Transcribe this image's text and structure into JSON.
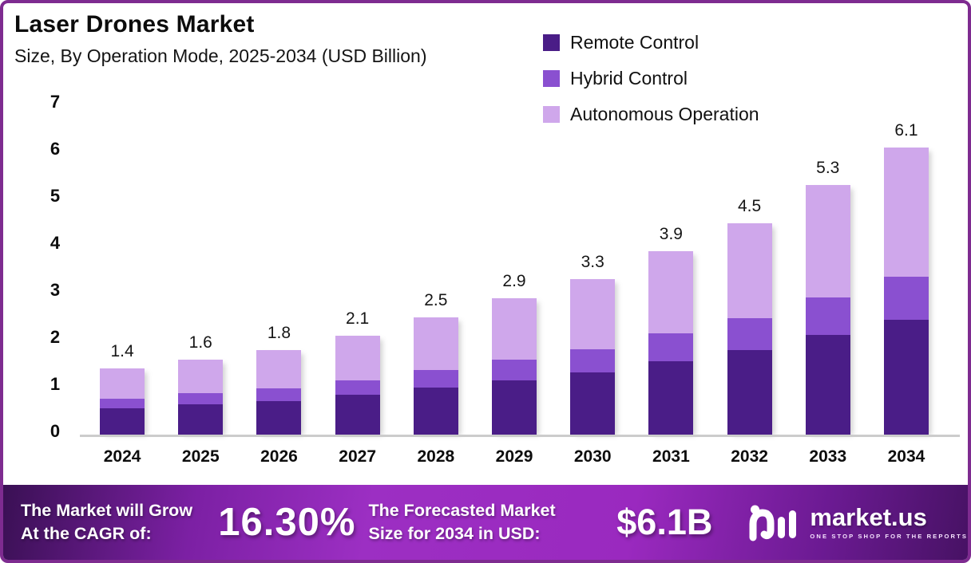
{
  "title": "Laser Drones Market",
  "subtitle": "Size, By Operation Mode, 2025-2034 (USD Billion)",
  "legend": [
    {
      "label": "Remote Control"
    },
    {
      "label": "Hybrid Control"
    },
    {
      "label": "Autonomous Operation"
    }
  ],
  "chart_data": {
    "type": "bar",
    "stacked": true,
    "title": "Laser Drones Market Size, By Operation Mode, 2025-2034 (USD Billion)",
    "categories": [
      "2024",
      "2025",
      "2026",
      "2027",
      "2028",
      "2029",
      "2030",
      "2031",
      "2032",
      "2033",
      "2034"
    ],
    "series": [
      {
        "name": "Remote Control",
        "color": "#4a1d87",
        "values": [
          0.56,
          0.64,
          0.72,
          0.84,
          1.0,
          1.16,
          1.32,
          1.56,
          1.8,
          2.12,
          2.44
        ]
      },
      {
        "name": "Hybrid Control",
        "color": "#8a50d0",
        "values": [
          0.21,
          0.24,
          0.27,
          0.32,
          0.38,
          0.44,
          0.5,
          0.59,
          0.68,
          0.8,
          0.92
        ]
      },
      {
        "name": "Autonomous Operation",
        "color": "#cfa7eb",
        "values": [
          0.63,
          0.72,
          0.81,
          0.94,
          1.12,
          1.3,
          1.48,
          1.75,
          2.02,
          2.38,
          2.74
        ]
      }
    ],
    "totals": [
      1.4,
      1.6,
      1.8,
      2.1,
      2.5,
      2.9,
      3.3,
      3.9,
      4.5,
      5.3,
      6.1
    ],
    "total_labels": [
      "1.4",
      "1.6",
      "1.8",
      "2.1",
      "2.5",
      "2.9",
      "3.3",
      "3.9",
      "4.5",
      "5.3",
      "6.1"
    ],
    "xlabel": "",
    "ylabel": "",
    "ylim": [
      0,
      7
    ],
    "yticks": [
      0,
      1,
      2,
      3,
      4,
      5,
      6,
      7
    ],
    "grid": false,
    "legend_position": "top-right"
  },
  "banner": {
    "cagr_label_line1": "The Market will Grow",
    "cagr_label_line2": "At the CAGR of:",
    "cagr_value": "16.30%",
    "forecast_label_line1": "The Forecasted Market",
    "forecast_label_line2": "Size for 2034 in USD:",
    "forecast_value": "$6.1B",
    "brand_name": "market.us",
    "brand_tagline": "ONE STOP SHOP FOR THE REPORTS"
  },
  "colors": {
    "frame_border": "#7e2b90",
    "axis_line": "#cccccc",
    "remote_control": "#4a1d87",
    "hybrid_control": "#8a50d0",
    "autonomous_operation": "#cfa7eb",
    "banner_bright": "#9c2fc3",
    "banner_dark_left": "#3a1054",
    "banner_dark_right": "#471264"
  }
}
